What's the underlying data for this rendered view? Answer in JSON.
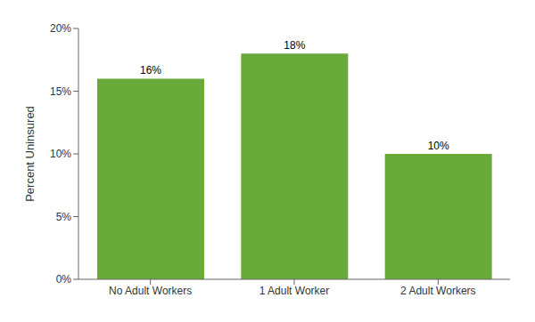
{
  "chart_data": {
    "type": "bar",
    "ylabel": "Percent Uninsured",
    "categories": [
      "No Adult Workers",
      "1 Adult Worker",
      "2 Adult Workers"
    ],
    "values": [
      16,
      18,
      10
    ],
    "value_labels": [
      "16%",
      "18%",
      "10%"
    ],
    "data_labels": true,
    "color": "#6aaa3a",
    "ylim": [
      0,
      20
    ],
    "yticks": [
      {
        "value": 0,
        "label": "0%"
      },
      {
        "value": 5,
        "label": "5%"
      },
      {
        "value": 10,
        "label": "10%"
      },
      {
        "value": 15,
        "label": "15%"
      },
      {
        "value": 20,
        "label": "20%"
      }
    ],
    "grid": false
  }
}
